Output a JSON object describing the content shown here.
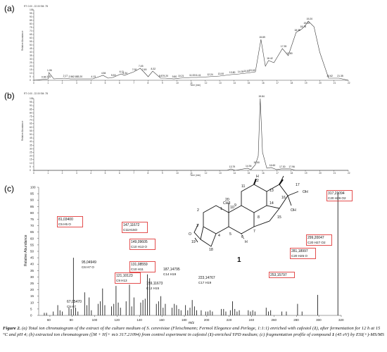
{
  "panels": {
    "a": {
      "label": "(a)",
      "header": "RT: 0.00 - 22.00  SM: 7B",
      "ylabel": "Relative Abundance",
      "xlabel": "Time (min)",
      "peak_labels": [
        "0.66",
        "1.02",
        "1.06",
        "2.17",
        "2.56",
        "2.88",
        "3.20",
        "4.13",
        "4.84",
        "5.53",
        "6.11",
        "6.34",
        "7.00",
        "7.45",
        "7.69",
        "8.32",
        "8.87",
        "9.20",
        "9.80",
        "10.21",
        "11.00",
        "11.41",
        "12.24",
        "13.00",
        "13.80",
        "14.39",
        "14.81",
        "15.18",
        "15.89",
        "16.42",
        "17.39",
        "17.80",
        "18.35",
        "18.76",
        "19.00",
        "19.20",
        "20.62",
        "21.35"
      ]
    },
    "b": {
      "label": "(b)",
      "header": "RT: 0.00 - 22.00  SM: 7B",
      "ylabel": "Relative Abundance",
      "xlabel": "Time (min)",
      "peak_labels": [
        "13.79",
        "14.94",
        "15.50",
        "15.84",
        "16.60",
        "17.30",
        "17.96"
      ]
    },
    "c": {
      "label": "(c)",
      "ylabel": "Relative Abundance",
      "xlabel": "m/z"
    }
  },
  "chart_data": [
    {
      "type": "line",
      "title": "",
      "xlabel": "Time (min)",
      "ylabel": "Relative Abundance",
      "xlim": [
        0,
        22
      ],
      "ylim": [
        0,
        100
      ],
      "x_ticks": [
        "0",
        "1",
        "2",
        "3",
        "4",
        "5",
        "6",
        "7",
        "8",
        "9",
        "10",
        "11",
        "12",
        "13",
        "14",
        "15",
        "16",
        "17",
        "18",
        "19",
        "20",
        "21",
        "22"
      ],
      "y_ticks": [
        "0",
        "5",
        "10",
        "15",
        "20",
        "25",
        "30",
        "35",
        "40",
        "45",
        "50",
        "55",
        "60",
        "65",
        "70",
        "75",
        "80",
        "85",
        "90",
        "95",
        "100"
      ],
      "series": [
        {
          "x": [
            0,
            0.5,
            1.02,
            1.06,
            1.4,
            2.17,
            2.56,
            2.88,
            3.2,
            3.6,
            4.13,
            4.84,
            5.2,
            5.53,
            6.11,
            6.34,
            7.0,
            7.45,
            7.69,
            8.0,
            8.32,
            8.87,
            9.2,
            9.8,
            10.21,
            11.0,
            11.41,
            12.24,
            13.0,
            13.8,
            14.39,
            14.81,
            15.18,
            15.5,
            15.89,
            16.2,
            16.42,
            16.8,
            17.39,
            17.8,
            18.35,
            18.76,
            19.0,
            19.2,
            19.6,
            20.0,
            20.62,
            21.35,
            22.0
          ],
          "y": [
            0,
            1,
            2,
            11,
            2,
            3,
            2,
            2,
            2,
            2,
            2,
            7,
            3,
            4,
            9,
            7,
            12,
            17,
            12,
            5,
            13,
            3,
            3,
            2,
            3,
            4,
            4,
            5,
            6,
            8,
            9,
            10,
            11,
            12,
            58,
            20,
            28,
            25,
            45,
            35,
            68,
            73,
            78,
            84,
            76,
            40,
            3,
            3,
            0
          ]
        }
      ]
    },
    {
      "type": "line",
      "title": "",
      "xlabel": "Time (min)",
      "ylabel": "Relative Abundance",
      "xlim": [
        0,
        22
      ],
      "ylim": [
        0,
        100
      ],
      "x_ticks": [
        "0",
        "1",
        "2",
        "3",
        "4",
        "5",
        "6",
        "7",
        "8",
        "9",
        "10",
        "11",
        "12",
        "13",
        "14",
        "15",
        "16",
        "17",
        "18",
        "19",
        "20",
        "21",
        "22"
      ],
      "y_ticks": [
        "0",
        "5",
        "10",
        "15",
        "20",
        "25",
        "30",
        "35",
        "40",
        "45",
        "50",
        "55",
        "60",
        "65",
        "70",
        "75",
        "80",
        "85",
        "90",
        "95",
        "100"
      ],
      "series": [
        {
          "x": [
            0,
            13.5,
            13.79,
            14.1,
            14.94,
            15.2,
            15.5,
            15.7,
            15.84,
            16.0,
            16.3,
            16.6,
            17.0,
            17.3,
            17.96,
            18.3,
            22
          ],
          "y": [
            0,
            0,
            2,
            0,
            3,
            1,
            8,
            20,
            100,
            25,
            3,
            4,
            1,
            2,
            2,
            0,
            0
          ]
        }
      ]
    },
    {
      "type": "bar",
      "title": "",
      "xlabel": "m/z",
      "ylabel": "Relative Abundance",
      "xlim": [
        50,
        320
      ],
      "ylim": [
        0,
        100
      ],
      "x_ticks": [
        "60",
        "80",
        "100",
        "120",
        "140",
        "160",
        "180",
        "200",
        "220",
        "240",
        "260",
        "280",
        "300",
        "320"
      ],
      "y_ticks": [
        "0",
        "5",
        "10",
        "15",
        "20",
        "25",
        "30",
        "35",
        "40",
        "45",
        "50",
        "55",
        "60",
        "65",
        "70",
        "75",
        "80",
        "85",
        "90",
        "95",
        "100"
      ],
      "x": [
        55,
        57,
        63,
        67,
        69,
        71,
        77,
        79,
        81,
        83,
        85,
        91,
        93,
        95,
        97,
        103,
        105,
        107,
        109,
        115,
        117,
        119,
        121,
        123,
        128,
        131,
        133,
        135,
        141,
        143,
        145,
        147,
        149,
        155,
        157,
        159,
        161,
        163,
        169,
        171,
        173,
        175,
        177,
        181,
        183,
        185,
        187,
        189,
        191,
        195,
        199,
        201,
        203,
        205,
        213,
        215,
        217,
        221,
        223,
        225,
        227,
        229,
        237,
        239,
        241,
        243,
        253,
        255,
        257,
        267,
        271,
        281,
        285,
        299,
        317
      ],
      "values": [
        2,
        2,
        3,
        8,
        4,
        3,
        6,
        5,
        45,
        6,
        3,
        18,
        8,
        14,
        4,
        9,
        11,
        21,
        8,
        7,
        9,
        23,
        10,
        6,
        11,
        24,
        7,
        14,
        10,
        12,
        13,
        32,
        29,
        9,
        11,
        15,
        6,
        9,
        6,
        9,
        8,
        5,
        4,
        8,
        4,
        6,
        12,
        7,
        4,
        4,
        3,
        3,
        4,
        3,
        5,
        5,
        3,
        4,
        11,
        5,
        3,
        4,
        4,
        3,
        4,
        3,
        6,
        3,
        4,
        3,
        3,
        9,
        3,
        16,
        96
      ],
      "annotations": [
        {
          "mz": "317,21094",
          "formula": "C20 H29 O2",
          "boxed": true
        },
        {
          "mz": "299,20047",
          "formula": "C20 H27 O2",
          "boxed": true
        },
        {
          "mz": "281,18997",
          "formula": "C20 H25 O",
          "boxed": true
        },
        {
          "mz": "253,15797",
          "formula": "",
          "boxed": true
        },
        {
          "mz": "223,14767",
          "formula": "C17 H19",
          "boxed": false
        },
        {
          "mz": "187,14795",
          "formula": "C14 H19",
          "boxed": false
        },
        {
          "mz": "159,11673",
          "formula": "C12 H15",
          "boxed": false
        },
        {
          "mz": "149,09605",
          "formula": "C10 H13 O",
          "boxed": true
        },
        {
          "mz": "147,11672",
          "formula": "C11H15O",
          "boxed": true
        },
        {
          "mz": "131,08559",
          "formula": "C10 H11",
          "boxed": true
        },
        {
          "mz": "121,10123",
          "formula": "C9 H13",
          "boxed": true
        },
        {
          "mz": "95,04949",
          "formula": "C6 H7 O",
          "boxed": false
        },
        {
          "mz": "81,03400",
          "formula": "C5 H5 O",
          "boxed": true
        },
        {
          "mz": "67,05470",
          "formula": "C5 H7",
          "boxed": false
        }
      ]
    }
  ],
  "structure": {
    "atoms": [
      "1",
      "2",
      "3",
      "4",
      "5",
      "6",
      "7",
      "8",
      "9",
      "10",
      "11",
      "12",
      "13",
      "14",
      "15",
      "16",
      "17",
      "18",
      "19",
      "20"
    ],
    "groups": [
      "CH3",
      "OH",
      "OH",
      "O",
      "H",
      "H"
    ],
    "compound_number": "1"
  },
  "caption": {
    "figure_label": "Figure 2.",
    "text_a": "(a) Total ion chromatogram of the extract of the culture medium of S. cerevisiae (Fleischmann; Fermol Elegance and Perlage, 1:1:1) enriched with cafestol (",
    "compound_ref_1": "1",
    "text_b": "), after fermentation for 12 h at 15 °C and pH 4; (b) extracted ion chromatogram ([M + H]+ m/z 317.21094) from control experiment in cafestol (",
    "compound_ref_2": "1",
    "text_c": ")-enriched YPD medium; (c) fragmentation profile of compound ",
    "compound_ref_3": "1",
    "text_d": " (45 eV) by ESI(+)-MS/MS"
  }
}
